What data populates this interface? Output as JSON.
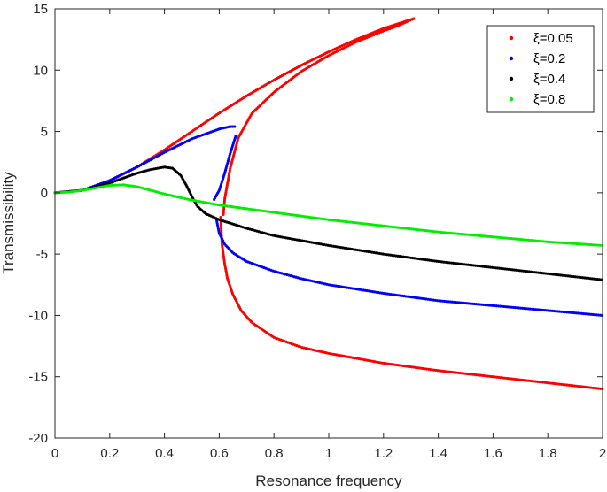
{
  "chart_data": {
    "type": "scatter",
    "xlabel": "Resonance frequency",
    "ylabel": "Transmissibility",
    "xlim": [
      0,
      2
    ],
    "ylim": [
      -20,
      15
    ],
    "xticks": [
      0,
      0.2,
      0.4,
      0.6,
      0.8,
      1,
      1.2,
      1.4,
      1.6,
      1.8,
      2
    ],
    "xtick_labels": [
      "0",
      "0.2",
      "0.4",
      "0.6",
      "0.8",
      "1",
      "1.2",
      "1.4",
      "1.6",
      "1.8",
      "2"
    ],
    "yticks": [
      15,
      10,
      5,
      0,
      -5,
      -10,
      -15,
      -20
    ],
    "ytick_labels": [
      "15",
      "10",
      "5",
      "0",
      "-5",
      "-10",
      "-15",
      "-20"
    ],
    "grid": false,
    "legend_position": "top-right",
    "series": [
      {
        "name": "ξ=0.05",
        "color": "#ff0000",
        "branches": [
          {
            "x": [
              0,
              0.1,
              0.2,
              0.3,
              0.4,
              0.5,
              0.6,
              0.7,
              0.8,
              0.9,
              1.0,
              1.1,
              1.2,
              1.31
            ],
            "y": [
              0,
              0.2,
              1.0,
              2.1,
              3.5,
              5.0,
              6.5,
              7.9,
              9.2,
              10.4,
              11.5,
              12.5,
              13.4,
              14.2
            ]
          },
          {
            "x": [
              1.31,
              1.25,
              1.2,
              1.1,
              1.0,
              0.9,
              0.8,
              0.72,
              0.67,
              0.64,
              0.62,
              0.615
            ],
            "y": [
              14.2,
              13.6,
              13.2,
              12.3,
              11.2,
              9.9,
              8.2,
              6.5,
              4.5,
              2.0,
              -0.5,
              -1.8
            ]
          },
          {
            "x": [
              0.605,
              0.61,
              0.62,
              0.63,
              0.65,
              0.68,
              0.72,
              0.8,
              0.9,
              1.0,
              1.2,
              1.4,
              1.6,
              1.8,
              2.0
            ],
            "y": [
              -2.0,
              -4.2,
              -5.8,
              -7.0,
              -8.3,
              -9.6,
              -10.6,
              -11.8,
              -12.6,
              -13.1,
              -13.9,
              -14.5,
              -15.0,
              -15.5,
              -16.0
            ]
          }
        ]
      },
      {
        "name": "ξ=0.2",
        "color": "#0000ff",
        "branches": [
          {
            "x": [
              0,
              0.1,
              0.2,
              0.3,
              0.4,
              0.5,
              0.6,
              0.64,
              0.66
            ],
            "y": [
              0,
              0.2,
              1.0,
              2.1,
              3.3,
              4.4,
              5.2,
              5.4,
              5.4
            ]
          },
          {
            "x": [
              0.66,
              0.64,
              0.62,
              0.6,
              0.58
            ],
            "y": [
              4.6,
              3.2,
              1.6,
              0.2,
              -0.6
            ]
          },
          {
            "x": [
              0.59,
              0.6,
              0.62,
              0.65,
              0.7,
              0.8,
              0.9,
              1.0,
              1.2,
              1.4,
              1.6,
              1.8,
              2.0
            ],
            "y": [
              -2.2,
              -3.3,
              -4.2,
              -4.9,
              -5.6,
              -6.4,
              -7.0,
              -7.5,
              -8.2,
              -8.8,
              -9.2,
              -9.6,
              -10.0
            ]
          }
        ]
      },
      {
        "name": "ξ=0.4",
        "color": "#000000",
        "branches": [
          {
            "x": [
              0,
              0.1,
              0.2,
              0.3,
              0.35,
              0.4,
              0.43,
              0.46,
              0.48,
              0.5,
              0.52,
              0.55,
              0.6,
              0.7,
              0.8,
              0.9,
              1.0,
              1.2,
              1.4,
              1.6,
              1.8,
              2.0
            ],
            "y": [
              0,
              0.2,
              0.8,
              1.6,
              1.9,
              2.1,
              2.0,
              1.4,
              0.6,
              -0.3,
              -1.1,
              -1.7,
              -2.2,
              -2.9,
              -3.5,
              -3.9,
              -4.3,
              -5.0,
              -5.6,
              -6.1,
              -6.6,
              -7.1
            ]
          }
        ]
      },
      {
        "name": "ξ=0.8",
        "color": "#00ee00",
        "branches": [
          {
            "x": [
              0,
              0.05,
              0.1,
              0.15,
              0.2,
              0.25,
              0.3,
              0.35,
              0.4,
              0.45,
              0.5,
              0.6,
              0.7,
              0.8,
              0.9,
              1.0,
              1.2,
              1.4,
              1.6,
              1.8,
              2.0
            ],
            "y": [
              0,
              0.05,
              0.2,
              0.4,
              0.6,
              0.65,
              0.5,
              0.2,
              -0.1,
              -0.35,
              -0.6,
              -1.0,
              -1.3,
              -1.6,
              -1.9,
              -2.2,
              -2.7,
              -3.2,
              -3.6,
              -4.0,
              -4.3
            ]
          }
        ]
      }
    ]
  }
}
